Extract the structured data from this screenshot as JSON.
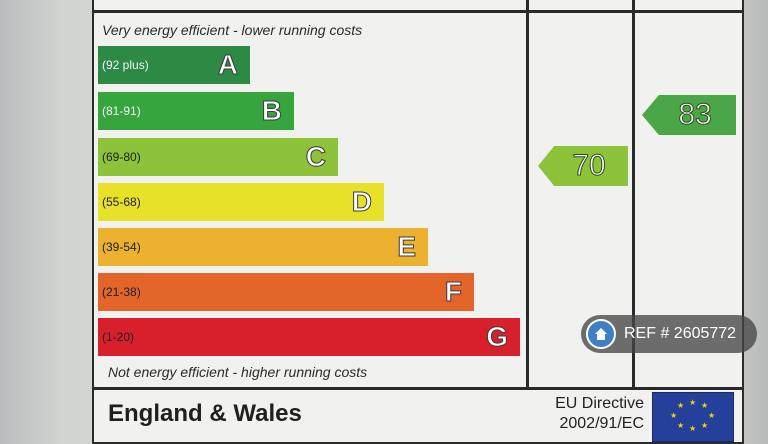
{
  "top_note": "Very energy efficient - lower running costs",
  "bottom_note": "Not energy efficient - higher running costs",
  "bands": [
    {
      "range": "(92 plus)",
      "letter": "A",
      "color": "#2c8a45"
    },
    {
      "range": "(81-91)",
      "letter": "B",
      "color": "#36a53d"
    },
    {
      "range": "(69-80)",
      "letter": "C",
      "color": "#8cc33a"
    },
    {
      "range": "(55-68)",
      "letter": "D",
      "color": "#e7e12a"
    },
    {
      "range": "(39-54)",
      "letter": "E",
      "color": "#ecb12f"
    },
    {
      "range": "(21-38)",
      "letter": "F",
      "color": "#e4652a"
    },
    {
      "range": "(1-20)",
      "letter": "G",
      "color": "#d81f2c"
    }
  ],
  "current_rating": {
    "value": "70",
    "color": "#8cc33a"
  },
  "potential_rating": {
    "value": "83",
    "color": "#4aa647"
  },
  "region": "England & Wales",
  "directive_line1": "EU Directive",
  "directive_line2": "2002/91/EC",
  "ref_badge": "REF # 2605772",
  "icons": {
    "ref": "home-icon",
    "flag": "eu-flag-icon"
  }
}
